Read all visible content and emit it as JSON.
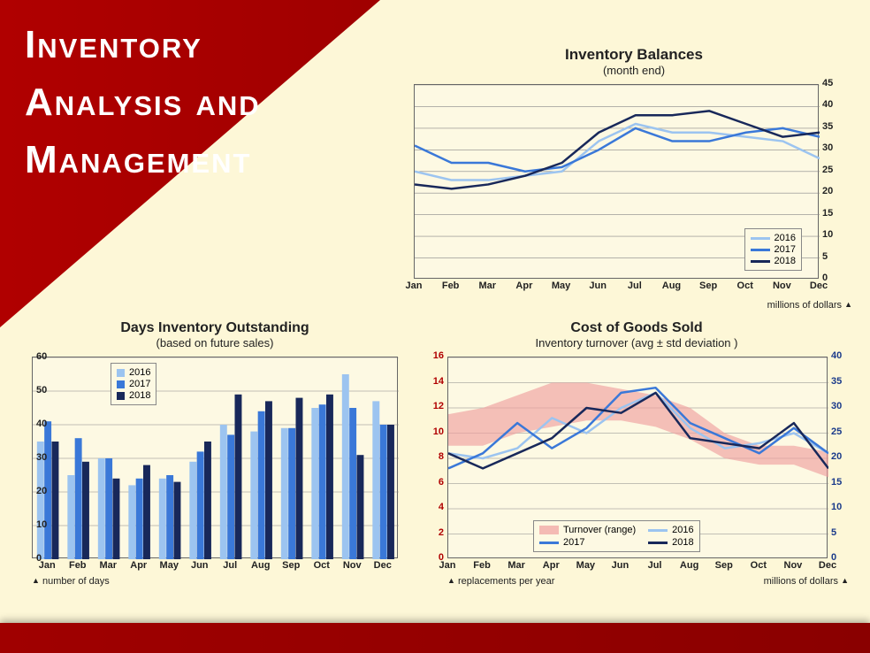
{
  "title_line1": "Inventory",
  "title_line2": "Analysis and",
  "title_line3": "Management",
  "months": [
    "Jan",
    "Feb",
    "Mar",
    "Apr",
    "May",
    "Jun",
    "Jul",
    "Aug",
    "Sep",
    "Oct",
    "Nov",
    "Dec"
  ],
  "colors": {
    "bg_cream": "#fdf7d7",
    "plot_bg": "#fdf9e3",
    "border": "#666666",
    "grid": "#888888",
    "series2016": "#9cc4f0",
    "series2017": "#3a78d8",
    "series2018": "#18285a",
    "turnover_fill": "#f0a0a0",
    "red_axis": "#b00000",
    "blue_axis": "#1a3a8a"
  },
  "chart1": {
    "title": "Inventory Balances",
    "subtitle": "(month end)",
    "type": "line",
    "ylim": [
      0,
      45
    ],
    "ytick_step": 5,
    "y_axis_note": "millions of dollars",
    "line_width": 2.5,
    "series": {
      "2016": [
        25,
        23,
        23,
        24,
        25,
        32,
        36,
        34,
        34,
        33,
        32,
        28
      ],
      "2017": [
        31,
        27,
        27,
        25,
        26,
        30,
        35,
        32,
        32,
        34,
        35,
        33
      ],
      "2018": [
        22,
        21,
        22,
        24,
        27,
        34,
        38,
        38,
        39,
        36,
        33,
        34
      ]
    },
    "legend_labels": [
      "2016",
      "2017",
      "2018"
    ]
  },
  "chart2": {
    "title": "Days Inventory Outstanding",
    "subtitle": "(based on future sales)",
    "type": "bar",
    "ylim": [
      0,
      60
    ],
    "ytick_step": 10,
    "y_axis_note": "number of days",
    "bar_group_width": 0.75,
    "series": {
      "2016": [
        35,
        25,
        30,
        22,
        24,
        29,
        40,
        38,
        39,
        45,
        55,
        47
      ],
      "2017": [
        41,
        36,
        30,
        24,
        25,
        32,
        37,
        44,
        39,
        46,
        45,
        40
      ],
      "2018": [
        35,
        29,
        24,
        28,
        23,
        35,
        49,
        47,
        48,
        49,
        31,
        40
      ]
    },
    "legend_labels": [
      "2016",
      "2017",
      "2018"
    ]
  },
  "chart3": {
    "title": "Cost of Goods Sold",
    "subtitle": "Inventory turnover (avg ± std deviation )",
    "type": "dual-axis-line",
    "yL": {
      "lim": [
        0,
        16
      ],
      "tick_step": 2,
      "color": "#b00000"
    },
    "yR": {
      "lim": [
        0,
        40
      ],
      "tick_step": 5,
      "color": "#1a3a8a"
    },
    "left_note": "replacements per year",
    "right_note": "millions of dollars",
    "line_width": 2.5,
    "turnover_range": {
      "upper": [
        11.5,
        12,
        13,
        14,
        14,
        13.5,
        13,
        12,
        10,
        9,
        9,
        8.5
      ],
      "lower": [
        9,
        9,
        10,
        10.5,
        11,
        11,
        10.5,
        9.5,
        8,
        7.5,
        7.5,
        6.5
      ]
    },
    "series": {
      "2016": [
        21,
        20,
        22,
        28,
        25,
        30,
        33,
        26,
        22,
        23,
        25,
        21
      ],
      "2017": [
        18,
        21,
        27,
        22,
        26,
        33,
        34,
        27,
        24,
        21,
        26,
        21
      ],
      "2018": [
        21,
        18,
        21,
        24,
        30,
        29,
        33,
        24,
        23,
        22,
        27,
        18
      ]
    },
    "legend_labels": [
      "Turnover (range)",
      "2016",
      "2017",
      "2018"
    ]
  }
}
